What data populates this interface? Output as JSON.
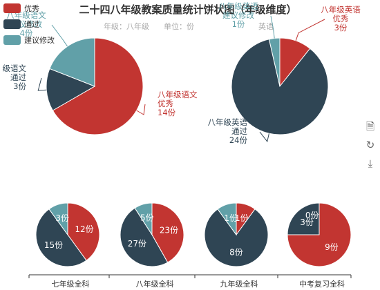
{
  "header": {
    "title": "二十四八年级教案质量统计饼状图（年级维度）",
    "subtitle_parts": [
      "年级：八年级",
      "单位：份",
      "英语"
    ]
  },
  "colors": {
    "excellent": "#c23531",
    "pass": "#2f4554",
    "revise": "#61a0a8"
  },
  "legend": [
    {
      "name": "优秀",
      "color": "#c23531"
    },
    {
      "name": "通过",
      "color": "#2f4554"
    },
    {
      "name": "建议修改",
      "color": "#61a0a8"
    }
  ],
  "toolbox": [
    {
      "name": "data-view-icon",
      "glyph": "🗎"
    },
    {
      "name": "restore-icon",
      "glyph": "↻"
    },
    {
      "name": "download-icon",
      "glyph": "⤓"
    }
  ],
  "chart_data": [
    {
      "type": "pie",
      "title": "",
      "slices": [
        {
          "name": "八年级语文优秀",
          "value": 14,
          "label_lines": [
            "八年级语文",
            "优秀",
            "14份"
          ],
          "color": "#c23531"
        },
        {
          "name": "八年级语文通过",
          "value": 3,
          "label_lines": [
            "级语文",
            "通过",
            "3份"
          ],
          "color": "#2f4554"
        },
        {
          "name": "八年级语文建议修改",
          "value": 4,
          "label_lines": [
            "八年级语文",
            "建议修改",
            "4份"
          ],
          "color": "#61a0a8"
        }
      ]
    },
    {
      "type": "pie",
      "title": "",
      "slices": [
        {
          "name": "八年级英语优秀",
          "value": 3,
          "label_lines": [
            "八年级英语",
            "优秀",
            "3份"
          ],
          "color": "#c23531"
        },
        {
          "name": "八年级英语通过",
          "value": 24,
          "label_lines": [
            "八年级英语",
            "通过",
            "24份"
          ],
          "color": "#2f4554"
        },
        {
          "name": "八年级英语建议修改",
          "value": 1,
          "label_lines": [
            "八年级英语",
            "建议修改",
            "1份"
          ],
          "color": "#61a0a8"
        }
      ]
    },
    {
      "type": "pie",
      "category": "七年级全科",
      "slices": [
        {
          "name": "优秀",
          "value": 12,
          "label": "12份",
          "color": "#c23531"
        },
        {
          "name": "通过",
          "value": 15,
          "label": "15份",
          "color": "#2f4554"
        },
        {
          "name": "建议修改",
          "value": 3,
          "label": "3份",
          "color": "#61a0a8"
        }
      ]
    },
    {
      "type": "pie",
      "category": "八年级全科",
      "slices": [
        {
          "name": "优秀",
          "value": 23,
          "label": "23份",
          "color": "#c23531"
        },
        {
          "name": "通过",
          "value": 27,
          "label": "27份",
          "color": "#2f4554"
        },
        {
          "name": "建议修改",
          "value": 5,
          "label": "5份",
          "color": "#61a0a8"
        }
      ]
    },
    {
      "type": "pie",
      "category": "九年级全科",
      "slices": [
        {
          "name": "优秀",
          "value": 1,
          "label": "1份",
          "color": "#c23531"
        },
        {
          "name": "通过",
          "value": 8,
          "label": "8份",
          "color": "#2f4554"
        },
        {
          "name": "建议修改",
          "value": 1,
          "label": "1份",
          "color": "#61a0a8"
        }
      ]
    },
    {
      "type": "pie",
      "category": "中考复习全科",
      "slices": [
        {
          "name": "优秀",
          "value": 9,
          "label": "9份",
          "color": "#c23531"
        },
        {
          "name": "通过",
          "value": 3,
          "label": "3份",
          "color": "#2f4554"
        },
        {
          "name": "建议修改",
          "value": 0,
          "label": "0份",
          "color": "#61a0a8"
        }
      ]
    }
  ]
}
